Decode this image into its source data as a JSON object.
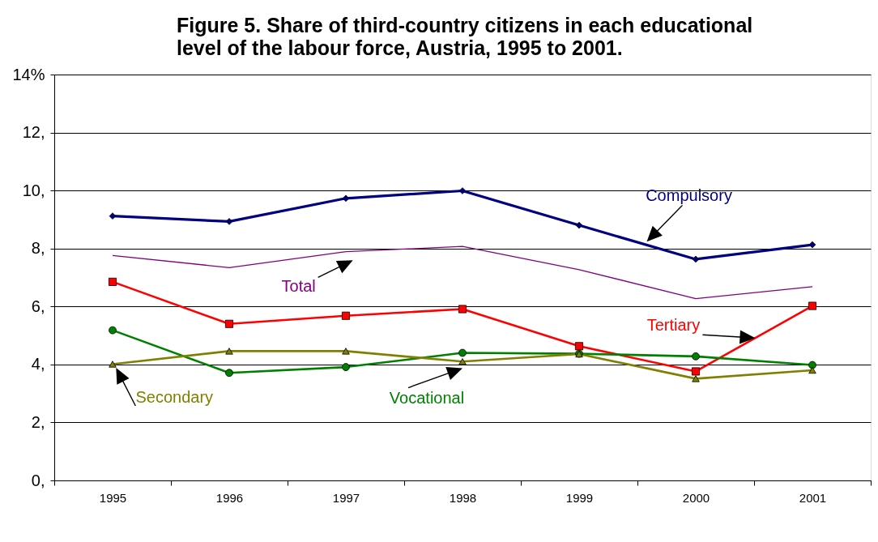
{
  "chart_data": {
    "type": "line",
    "title": "Figure 5. Share of third-country citizens in each educational level of the labour force, Austria, 1995 to 2001.",
    "categories": [
      "1995",
      "1996",
      "1997",
      "1998",
      "1999",
      "2000",
      "2001"
    ],
    "ylim": [
      0,
      14
    ],
    "yticks": [
      {
        "value": 0,
        "label": "0,"
      },
      {
        "value": 2,
        "label": "2,"
      },
      {
        "value": 4,
        "label": "4,"
      },
      {
        "value": 6,
        "label": "6,"
      },
      {
        "value": 8,
        "label": "8,"
      },
      {
        "value": 10,
        "label": "10,"
      },
      {
        "value": 12,
        "label": "12,"
      },
      {
        "value": 14,
        "label": "14%"
      }
    ],
    "grid": "y",
    "legend": false,
    "line_style": "solid",
    "series": [
      {
        "name": "Compulsory",
        "color": "#000080",
        "marker": "diamond",
        "values": [
          9.12,
          8.93,
          9.73,
          9.99,
          8.8,
          7.63,
          8.13
        ]
      },
      {
        "name": "Total",
        "color": "#800080",
        "marker": "none",
        "values": [
          7.76,
          7.34,
          7.89,
          8.07,
          7.27,
          6.27,
          6.68
        ]
      },
      {
        "name": "Tertiary",
        "color": "#ff0000",
        "marker": "square",
        "values": [
          6.85,
          5.4,
          5.68,
          5.91,
          4.63,
          3.76,
          6.02
        ]
      },
      {
        "name": "Vocational",
        "color": "#008000",
        "marker": "circle",
        "values": [
          5.18,
          3.71,
          3.91,
          4.4,
          4.37,
          4.28,
          3.98
        ]
      },
      {
        "name": "Secondary",
        "color": "#808000",
        "marker": "triangle",
        "values": [
          4.01,
          4.46,
          4.46,
          4.1,
          4.36,
          3.51,
          3.8
        ]
      }
    ]
  }
}
